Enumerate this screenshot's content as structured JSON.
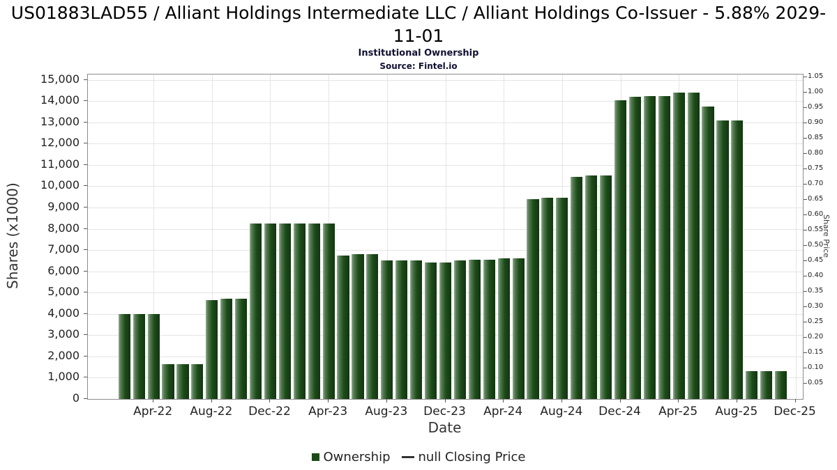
{
  "chart_data": {
    "type": "bar",
    "title": "US01883LAD55 / Alliant Holdings Intermediate LLC / Alliant Holdings Co-Issuer - 5.88% 2029-11-01",
    "subtitle": "Institutional Ownership",
    "source": "Source: Fintel.io",
    "xlabel": "Date",
    "categories": [
      "Feb-22",
      "Mar-22",
      "Apr-22",
      "May-22",
      "Jun-22",
      "Jul-22",
      "Aug-22",
      "Sep-22",
      "Oct-22",
      "Nov-22",
      "Dec-22",
      "Jan-23",
      "Feb-23",
      "Mar-23",
      "Apr-23",
      "May-23",
      "Jun-23",
      "Jul-23",
      "Aug-23",
      "Sep-23",
      "Oct-23",
      "Nov-23",
      "Dec-23",
      "Jan-24",
      "Feb-24",
      "Mar-24",
      "Apr-24",
      "May-24",
      "Jun-24",
      "Jul-24",
      "Aug-24",
      "Sep-24",
      "Oct-24",
      "Nov-24",
      "Dec-24",
      "Jan-25",
      "Feb-25",
      "Mar-25",
      "Apr-25",
      "May-25",
      "Jun-25",
      "Jul-25",
      "Aug-25",
      "Sep-25",
      "Oct-25",
      "Nov-25"
    ],
    "values": [
      4000,
      4000,
      4000,
      1650,
      1650,
      1650,
      4650,
      4700,
      4700,
      8250,
      8250,
      8250,
      8250,
      8250,
      8250,
      6750,
      6800,
      6800,
      6500,
      6500,
      6500,
      6400,
      6400,
      6500,
      6550,
      6550,
      6600,
      6600,
      9400,
      9450,
      9450,
      10450,
      10500,
      10500,
      14050,
      14200,
      14250,
      14250,
      14400,
      14400,
      13750,
      13100,
      13100,
      1300,
      1300,
      1300
    ],
    "x_ticks": [
      {
        "label": "Apr-22",
        "i": 2
      },
      {
        "label": "Aug-22",
        "i": 6
      },
      {
        "label": "Dec-22",
        "i": 10
      },
      {
        "label": "Apr-23",
        "i": 14
      },
      {
        "label": "Aug-23",
        "i": 18
      },
      {
        "label": "Dec-23",
        "i": 22
      },
      {
        "label": "Apr-24",
        "i": 26
      },
      {
        "label": "Aug-24",
        "i": 30
      },
      {
        "label": "Dec-24",
        "i": 34
      },
      {
        "label": "Apr-25",
        "i": 38
      },
      {
        "label": "Aug-25",
        "i": 42
      },
      {
        "label": "Dec-25",
        "i": 46
      }
    ],
    "left_axis": {
      "label": "Shares (x1000)",
      "tick_min": 0,
      "tick_max": 15000,
      "tick_step": 1000,
      "range": [
        0,
        15250
      ]
    },
    "right_axis": {
      "label": "Share Price",
      "tick_min": 0.05,
      "tick_max": 1.05,
      "tick_step": 0.05,
      "range": [
        0,
        1.059
      ]
    },
    "legend": [
      {
        "label": "Ownership",
        "marker": "square",
        "color": "#1b4a18"
      },
      {
        "label": "null Closing Price",
        "marker": "line",
        "color": "#333333"
      }
    ],
    "bar_color": "#1b4a18",
    "grid": true,
    "background": "#ffffff"
  }
}
